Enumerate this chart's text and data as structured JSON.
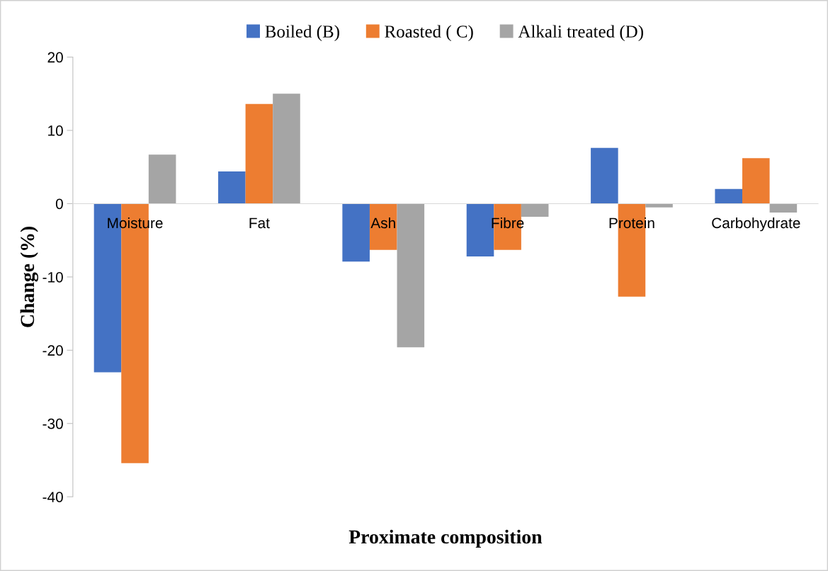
{
  "chart_data": {
    "type": "bar",
    "xlabel": "Proximate composition",
    "ylabel": "Change (%)",
    "categories": [
      "Moisture",
      "Fat",
      "Ash",
      "Fibre",
      "Protein",
      "Carbohydrate"
    ],
    "series": [
      {
        "name": "Boiled (B)",
        "color": "#4472c4",
        "values": [
          -23.0,
          4.4,
          -7.9,
          -7.2,
          7.6,
          2.0
        ]
      },
      {
        "name": "Roasted ( C)",
        "color": "#ed7d31",
        "values": [
          -35.4,
          13.6,
          -6.3,
          -6.3,
          -12.7,
          6.2
        ]
      },
      {
        "name": "Alkali treated (D)",
        "color": "#a5a5a5",
        "values": [
          6.7,
          15.0,
          -19.6,
          -1.8,
          -0.5,
          -1.2
        ]
      }
    ],
    "ylim": [
      -40,
      20
    ],
    "yticks": [
      -40,
      -30,
      -20,
      -10,
      0,
      10,
      20
    ],
    "grid": false,
    "legend": "top"
  }
}
